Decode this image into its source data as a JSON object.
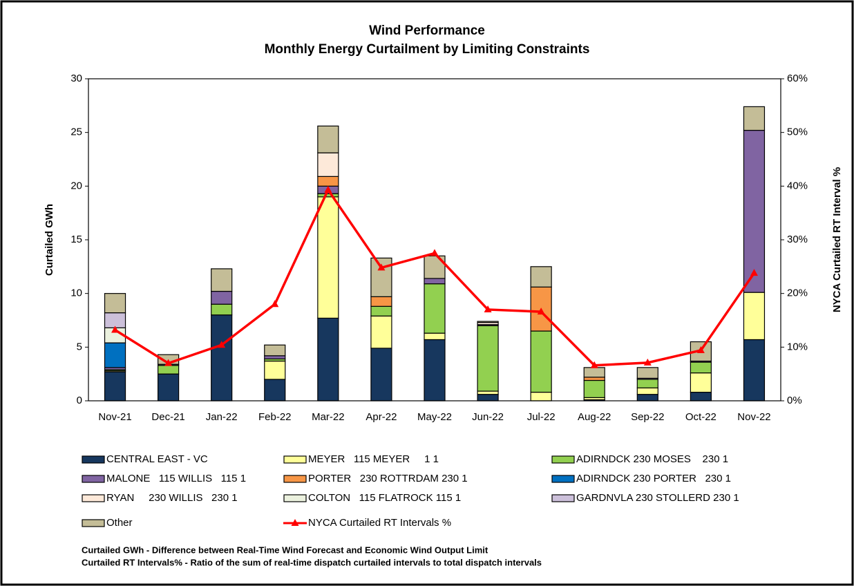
{
  "chart_data": {
    "type": "bar",
    "title": "Wind Performance",
    "subtitle": "Monthly Energy Curtailment by Limiting Constraints",
    "y_label": "Curtailed GWh",
    "y2_label": "NYCA Curtailed RT Interval %",
    "categories": [
      "Nov-21",
      "Dec-21",
      "Jan-22",
      "Feb-22",
      "Mar-22",
      "Apr-22",
      "May-22",
      "Jun-22",
      "Jul-22",
      "Aug-22",
      "Sep-22",
      "Oct-22",
      "Nov-22"
    ],
    "series": [
      {
        "name": "CENTRAL EAST - VC",
        "color": "#17375e",
        "values": [
          2.7,
          2.5,
          8.0,
          2.0,
          7.7,
          4.9,
          5.7,
          0.6,
          0,
          0.1,
          0.6,
          0.8,
          5.7
        ]
      },
      {
        "name": "MEYER   115 MEYER     1 1",
        "color": "#ffff99",
        "values": [
          0.1,
          0,
          0,
          1.7,
          11.3,
          3.0,
          0.6,
          0.3,
          0.8,
          0.2,
          0.6,
          1.8,
          4.4
        ]
      },
      {
        "name": "ADIRNDCK 230 MOSES    230 1",
        "color": "#92d050",
        "values": [
          0.1,
          0.8,
          1.0,
          0.2,
          0.3,
          0.9,
          4.6,
          6.1,
          5.7,
          1.6,
          0.8,
          1.0,
          0
        ]
      },
      {
        "name": "MALONE   115 WILLIS   115 1",
        "color": "#8064a2",
        "values": [
          0.2,
          0.1,
          1.2,
          0.3,
          0.7,
          0,
          0.5,
          0.1,
          0,
          0,
          0.1,
          0.1,
          15.1
        ]
      },
      {
        "name": "PORTER   230 ROTTRDAM 230 1",
        "color": "#f79646",
        "values": [
          0,
          0,
          0,
          0,
          0.9,
          0.9,
          0,
          0,
          4.1,
          0.3,
          0,
          0,
          0
        ]
      },
      {
        "name": "ADIRNDCK 230 PORTER   230 1",
        "color": "#0070c0",
        "values": [
          2.3,
          0,
          0,
          0,
          0,
          0,
          0,
          0,
          0,
          0,
          0,
          0,
          0
        ]
      },
      {
        "name": "RYAN     230 WILLIS   230 1",
        "color": "#fde9d9",
        "values": [
          0,
          0,
          0,
          0,
          2.2,
          0,
          0,
          0.2,
          0,
          0,
          0,
          0,
          0
        ]
      },
      {
        "name": "COLTON   115 FLATROCK 115 1",
        "color": "#ebf1de",
        "values": [
          1.4,
          0,
          0,
          0,
          0,
          0,
          0,
          0,
          0,
          0,
          0,
          0,
          0
        ]
      },
      {
        "name": "GARDNVLA 230 STOLLERD 230 1",
        "color": "#ccc0da",
        "values": [
          1.4,
          0,
          0,
          0,
          0,
          0,
          0,
          0,
          0,
          0,
          0,
          0,
          0
        ]
      },
      {
        "name": "Other",
        "color": "#c4bd97",
        "values": [
          1.8,
          0.9,
          2.1,
          1.0,
          2.5,
          3.6,
          2.1,
          0.1,
          1.9,
          0.9,
          1.0,
          1.8,
          2.2
        ]
      },
      {
        "name": "NYCA Curtailed RT Intervals %",
        "type": "line",
        "axis": "y2",
        "color": "#ff0000",
        "values": [
          13.2,
          7.0,
          10.4,
          18.0,
          39.3,
          24.8,
          27.5,
          17.0,
          16.6,
          6.6,
          7.1,
          9.4,
          23.8
        ]
      }
    ],
    "ylim": [
      0,
      30
    ],
    "yticks": [
      0,
      5,
      10,
      15,
      20,
      25,
      30
    ],
    "y2lim": [
      0,
      60
    ],
    "y2ticks": [
      {
        "value": 0,
        "label": "0%"
      },
      {
        "value": 10,
        "label": "10%"
      },
      {
        "value": 20,
        "label": "20%"
      },
      {
        "value": 30,
        "label": "30%"
      },
      {
        "value": 40,
        "label": "40%"
      },
      {
        "value": 50,
        "label": "50%"
      },
      {
        "value": 60,
        "label": "60%"
      }
    ],
    "grid": false,
    "notes": [
      "Curtailed GWh - Difference between Real-Time Wind Forecast and Economic Wind Output Limit",
      "Curtailed RT Intervals% - Ratio of the sum of real-time dispatch curtailed intervals to total dispatch intervals"
    ]
  }
}
